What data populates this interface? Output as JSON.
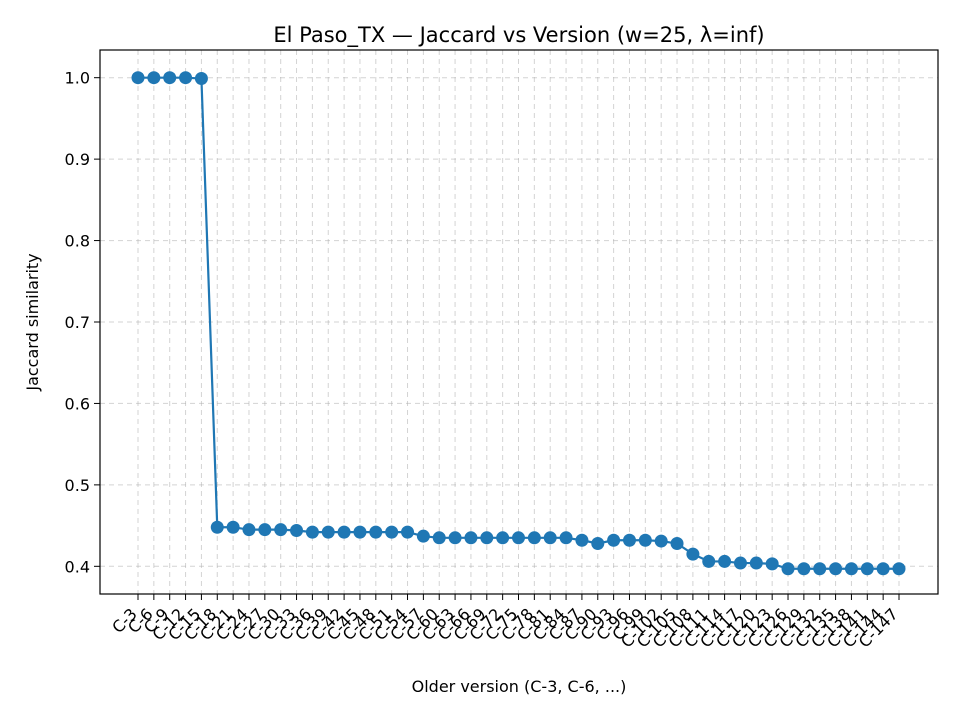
{
  "chart_data": {
    "type": "line",
    "title": "El Paso_TX — Jaccard vs Version (w=25, λ=inf)",
    "xlabel": "Older version (C-3, C-6, ...)",
    "ylabel": "Jaccard similarity",
    "ylim": [
      0.366,
      1.034
    ],
    "yticks": [
      0.4,
      0.5,
      0.6,
      0.7,
      0.8,
      0.9,
      1.0
    ],
    "grid": true,
    "x": [
      "C-3",
      "C-6",
      "C-9",
      "C-12",
      "C-15",
      "C-18",
      "C-21",
      "C-24",
      "C-27",
      "C-30",
      "C-33",
      "C-36",
      "C-39",
      "C-42",
      "C-45",
      "C-48",
      "C-51",
      "C-54",
      "C-57",
      "C-60",
      "C-63",
      "C-66",
      "C-69",
      "C-72",
      "C-75",
      "C-78",
      "C-81",
      "C-84",
      "C-87",
      "C-90",
      "C-93",
      "C-96",
      "C-99",
      "C-102",
      "C-105",
      "C-108",
      "C-111",
      "C-114",
      "C-117",
      "C-120",
      "C-123",
      "C-126",
      "C-129",
      "C-132",
      "C-135",
      "C-138",
      "C-141",
      "C-144",
      "C-147"
    ],
    "series": [
      {
        "color": "#1f77b4",
        "values": [
          1.0,
          1.0,
          1.0,
          1.0,
          0.999,
          0.448,
          0.448,
          0.445,
          0.445,
          0.445,
          0.444,
          0.442,
          0.442,
          0.442,
          0.442,
          0.442,
          0.442,
          0.442,
          0.437,
          0.435,
          0.435,
          0.435,
          0.435,
          0.435,
          0.435,
          0.435,
          0.435,
          0.435,
          0.432,
          0.428,
          0.432,
          0.432,
          0.432,
          0.431,
          0.428,
          0.415,
          0.406,
          0.406,
          0.404,
          0.404,
          0.403,
          0.397,
          0.397,
          0.397,
          0.397,
          0.397,
          0.397,
          0.397,
          0.397
        ]
      }
    ]
  }
}
